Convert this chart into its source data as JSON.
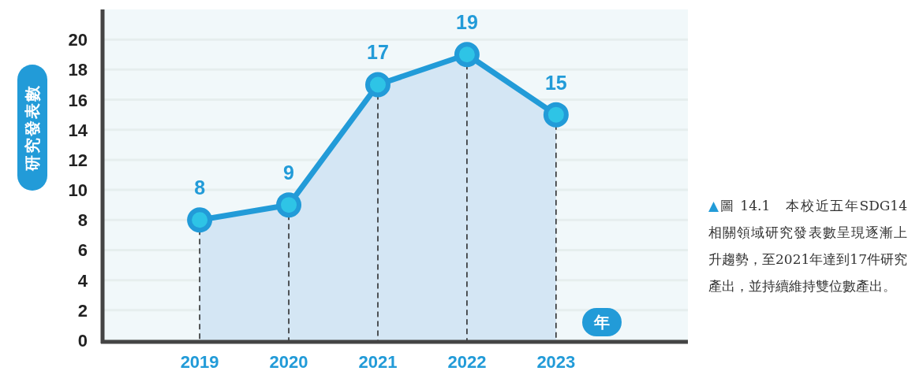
{
  "chart_data": {
    "type": "area",
    "categories": [
      "2019",
      "2020",
      "2021",
      "2022",
      "2023"
    ],
    "series": [
      {
        "color": "#229bd8",
        "values": [
          8,
          9,
          17,
          19,
          15
        ]
      }
    ],
    "ylabel": "研究發表數",
    "xlabel": "年",
    "ylim": [
      0,
      22
    ],
    "yticks": [
      0,
      2,
      4,
      6,
      8,
      10,
      12,
      14,
      16,
      18,
      20
    ],
    "grid": true,
    "marker": "circle",
    "data_labels": true,
    "annotations": [
      "▲圖 14.1　本校近五年SDG14相關領域研究發表數呈現逐漸上升趨勢，至2021年達到17件研究產出，並持續維持雙位數產出。"
    ]
  }
}
